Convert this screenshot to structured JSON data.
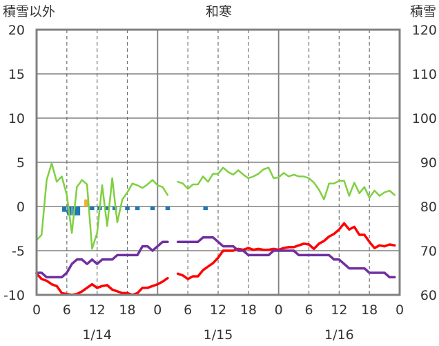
{
  "chart_data": {
    "type": "line",
    "title": "和寒",
    "left_axis_label": "積雪以外",
    "right_axis_label": "積雪",
    "left_ylim": [
      -10,
      20
    ],
    "left_yticks": [
      20,
      15,
      10,
      5,
      0,
      -5,
      -10
    ],
    "right_ylim": [
      60,
      120
    ],
    "right_yticks": [
      120,
      110,
      100,
      90,
      80,
      70,
      60
    ],
    "xlim_hours": [
      0,
      72
    ],
    "xticks": [
      {
        "h": 0,
        "label": "0"
      },
      {
        "h": 6,
        "label": "6"
      },
      {
        "h": 12,
        "label": "12"
      },
      {
        "h": 18,
        "label": "18"
      },
      {
        "h": 24,
        "label": "0"
      },
      {
        "h": 30,
        "label": "6"
      },
      {
        "h": 36,
        "label": "12"
      },
      {
        "h": 42,
        "label": "18"
      },
      {
        "h": 48,
        "label": "0"
      },
      {
        "h": 54,
        "label": "6"
      },
      {
        "h": 60,
        "label": "12"
      },
      {
        "h": 66,
        "label": "18"
      },
      {
        "h": 72,
        "label": "0"
      }
    ],
    "day_labels": [
      {
        "h": 12,
        "label": "1/14"
      },
      {
        "h": 36,
        "label": "1/15"
      },
      {
        "h": 60,
        "label": "1/16"
      }
    ],
    "grid": "dashed vertical lines every 6 h, solid at day boundaries",
    "series": [
      {
        "color": "#ff0000",
        "axis": "left",
        "segments": [
          [
            [
              0,
              -7.6
            ],
            [
              1,
              -8.2
            ],
            [
              2,
              -8.4
            ],
            [
              3,
              -8.8
            ],
            [
              4,
              -9.0
            ],
            [
              5,
              -9.8
            ],
            [
              6,
              -9.9
            ],
            [
              7,
              -10.0
            ],
            [
              8,
              -9.9
            ],
            [
              9,
              -9.6
            ],
            [
              10,
              -9.2
            ],
            [
              11,
              -8.8
            ],
            [
              12,
              -9.2
            ],
            [
              13,
              -9.0
            ],
            [
              14,
              -8.9
            ],
            [
              15,
              -9.4
            ],
            [
              16,
              -9.6
            ],
            [
              17,
              -9.8
            ],
            [
              18,
              -9.8
            ],
            [
              19,
              -10.0
            ],
            [
              20,
              -9.8
            ],
            [
              21,
              -9.2
            ],
            [
              22,
              -9.2
            ],
            [
              23,
              -9.0
            ],
            [
              24,
              -8.8
            ],
            [
              25,
              -8.5
            ],
            [
              26,
              -8.1
            ]
          ],
          [
            [
              28,
              -7.6
            ],
            [
              29,
              -7.8
            ],
            [
              30,
              -8.2
            ],
            [
              31,
              -7.9
            ],
            [
              32,
              -7.9
            ],
            [
              33,
              -7.2
            ],
            [
              34,
              -6.8
            ],
            [
              35,
              -6.4
            ],
            [
              36,
              -5.8
            ],
            [
              37,
              -5.0
            ],
            [
              38,
              -5.0
            ],
            [
              39,
              -5.0
            ],
            [
              40,
              -4.8
            ],
            [
              41,
              -4.9
            ],
            [
              42,
              -4.7
            ],
            [
              43,
              -4.9
            ],
            [
              44,
              -4.8
            ],
            [
              45,
              -4.9
            ],
            [
              46,
              -4.9
            ],
            [
              47,
              -4.8
            ],
            [
              48,
              -4.9
            ],
            [
              49,
              -4.7
            ],
            [
              50,
              -4.6
            ],
            [
              51,
              -4.6
            ],
            [
              52,
              -4.4
            ],
            [
              53,
              -4.2
            ],
            [
              54,
              -4.3
            ],
            [
              55,
              -4.8
            ],
            [
              56,
              -4.2
            ],
            [
              57,
              -3.9
            ],
            [
              58,
              -3.4
            ],
            [
              59,
              -3.1
            ],
            [
              60,
              -2.6
            ],
            [
              61,
              -1.9
            ],
            [
              62,
              -2.6
            ],
            [
              63,
              -2.3
            ],
            [
              64,
              -3.2
            ],
            [
              65,
              -3.2
            ],
            [
              66,
              -4.0
            ],
            [
              67,
              -4.7
            ],
            [
              68,
              -4.4
            ],
            [
              69,
              -4.5
            ],
            [
              70,
              -4.3
            ],
            [
              71,
              -4.4
            ]
          ]
        ]
      },
      {
        "color": "#7ed040",
        "axis": "left",
        "segments": [
          [
            [
              0,
              -3.8
            ],
            [
              1,
              -3.2
            ],
            [
              2,
              3.0
            ],
            [
              3,
              4.9
            ],
            [
              4,
              2.8
            ],
            [
              5,
              3.4
            ],
            [
              6,
              1.3
            ],
            [
              7,
              -3.0
            ],
            [
              8,
              2.2
            ],
            [
              9,
              3.0
            ],
            [
              10,
              2.5
            ],
            [
              11,
              -4.8
            ],
            [
              12,
              -3.0
            ],
            [
              13,
              2.4
            ],
            [
              14,
              -2.2
            ],
            [
              15,
              3.2
            ],
            [
              16,
              -1.8
            ],
            [
              17,
              0.8
            ],
            [
              18,
              1.6
            ],
            [
              19,
              2.6
            ],
            [
              20,
              2.4
            ],
            [
              21,
              2.1
            ],
            [
              22,
              2.5
            ],
            [
              23,
              3.0
            ],
            [
              24,
              2.4
            ],
            [
              25,
              2.2
            ],
            [
              26,
              1.3
            ]
          ],
          [
            [
              28,
              2.8
            ],
            [
              29,
              2.6
            ],
            [
              30,
              2.0
            ],
            [
              31,
              2.5
            ],
            [
              32,
              2.5
            ],
            [
              33,
              3.4
            ],
            [
              34,
              2.8
            ],
            [
              35,
              3.7
            ],
            [
              36,
              3.7
            ],
            [
              37,
              4.4
            ],
            [
              38,
              3.9
            ],
            [
              39,
              3.6
            ],
            [
              40,
              4.1
            ],
            [
              41,
              3.6
            ],
            [
              42,
              3.2
            ],
            [
              43,
              3.4
            ],
            [
              44,
              3.7
            ],
            [
              45,
              4.2
            ],
            [
              46,
              4.4
            ],
            [
              47,
              3.2
            ],
            [
              48,
              3.3
            ],
            [
              49,
              3.8
            ],
            [
              50,
              3.4
            ],
            [
              51,
              3.6
            ],
            [
              52,
              3.4
            ],
            [
              53,
              3.4
            ],
            [
              54,
              3.2
            ],
            [
              55,
              2.7
            ],
            [
              56,
              1.9
            ],
            [
              57,
              0.8
            ],
            [
              58,
              2.6
            ],
            [
              59,
              2.6
            ],
            [
              60,
              2.9
            ],
            [
              61,
              2.9
            ],
            [
              62,
              1.2
            ],
            [
              63,
              2.7
            ],
            [
              64,
              1.5
            ],
            [
              65,
              2.2
            ],
            [
              66,
              1.0
            ],
            [
              67,
              1.8
            ],
            [
              68,
              1.2
            ],
            [
              69,
              1.6
            ],
            [
              70,
              1.8
            ],
            [
              71,
              1.3
            ]
          ]
        ]
      },
      {
        "color": "#7030a0",
        "axis": "right",
        "segments": [
          [
            [
              0,
              65.0
            ],
            [
              1,
              65.0
            ],
            [
              2,
              64.0
            ],
            [
              3,
              64.0
            ],
            [
              4,
              64.0
            ],
            [
              5,
              64.0
            ],
            [
              6,
              65.0
            ],
            [
              7,
              67.0
            ],
            [
              8,
              68.0
            ],
            [
              9,
              68.0
            ],
            [
              10,
              67.0
            ],
            [
              11,
              68.0
            ],
            [
              12,
              67.0
            ],
            [
              13,
              68.0
            ],
            [
              14,
              68.0
            ],
            [
              15,
              68.0
            ],
            [
              16,
              69.0
            ],
            [
              17,
              69.0
            ],
            [
              18,
              69.0
            ],
            [
              19,
              69.0
            ],
            [
              20,
              69.0
            ],
            [
              21,
              71.0
            ],
            [
              22,
              71.0
            ],
            [
              23,
              70.0
            ],
            [
              24,
              71.0
            ],
            [
              25,
              72.0
            ],
            [
              26,
              72.0
            ]
          ],
          [
            [
              28,
              72.0
            ],
            [
              29,
              72.0
            ],
            [
              30,
              72.0
            ],
            [
              31,
              72.0
            ],
            [
              32,
              72.0
            ],
            [
              33,
              73.0
            ],
            [
              34,
              73.0
            ],
            [
              35,
              73.0
            ],
            [
              36,
              72.0
            ],
            [
              37,
              71.0
            ],
            [
              38,
              71.0
            ],
            [
              39,
              71.0
            ],
            [
              40,
              70.0
            ],
            [
              41,
              70.0
            ],
            [
              42,
              69.0
            ],
            [
              43,
              69.0
            ],
            [
              44,
              69.0
            ],
            [
              45,
              69.0
            ],
            [
              46,
              69.0
            ],
            [
              47,
              70.0
            ],
            [
              48,
              70.0
            ],
            [
              49,
              70.0
            ],
            [
              50,
              70.0
            ],
            [
              51,
              70.0
            ],
            [
              52,
              69.0
            ],
            [
              53,
              69.0
            ],
            [
              54,
              69.0
            ],
            [
              55,
              69.0
            ],
            [
              56,
              69.0
            ],
            [
              57,
              69.0
            ],
            [
              58,
              69.0
            ],
            [
              59,
              68.0
            ],
            [
              60,
              68.0
            ],
            [
              61,
              67.0
            ],
            [
              62,
              66.0
            ],
            [
              63,
              66.0
            ],
            [
              64,
              66.0
            ],
            [
              65,
              66.0
            ],
            [
              66,
              65.0
            ],
            [
              67,
              65.0
            ],
            [
              68,
              65.0
            ],
            [
              69,
              65.0
            ],
            [
              70,
              64.0
            ],
            [
              71,
              64.0
            ]
          ]
        ]
      }
    ],
    "bars": [
      {
        "color": "#1f77b4",
        "axis": "left",
        "points": [
          [
            5.5,
            -0.6
          ],
          [
            6.5,
            -1.0
          ],
          [
            7.5,
            -1.0
          ],
          [
            8.2,
            -1.0
          ],
          [
            11.0,
            -0.4
          ],
          [
            12.5,
            -0.4
          ],
          [
            14.0,
            -0.4
          ],
          [
            15.5,
            -0.4
          ],
          [
            18.0,
            -0.4
          ],
          [
            20.0,
            -0.4
          ],
          [
            23.0,
            -0.4
          ],
          [
            26.0,
            -0.4
          ],
          [
            33.5,
            -0.4
          ]
        ]
      },
      {
        "color": "#f0b030",
        "axis": "left",
        "points": [
          [
            9.9,
            0.8
          ]
        ]
      }
    ]
  }
}
